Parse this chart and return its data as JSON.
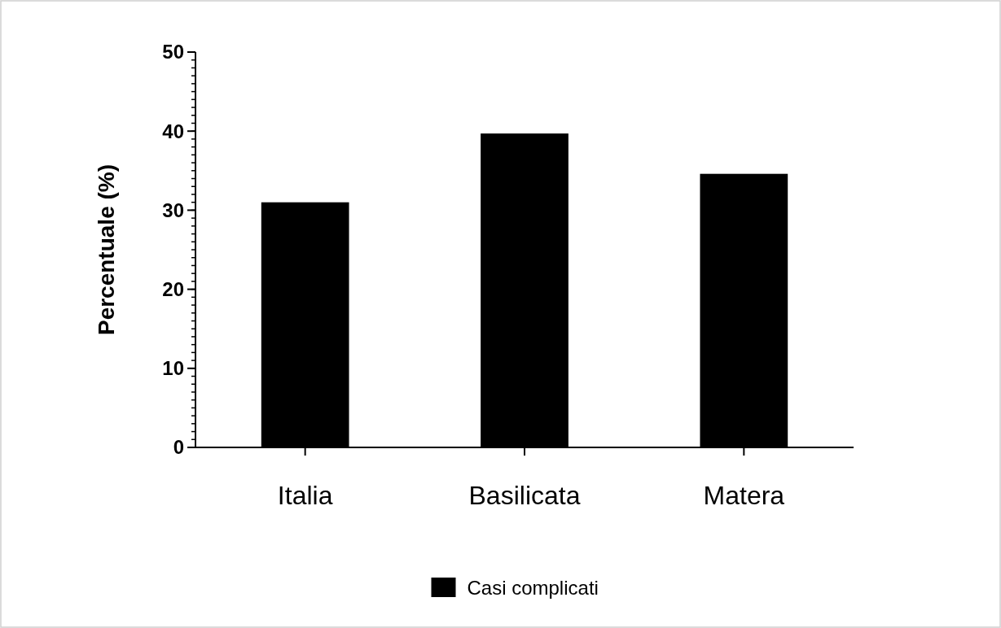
{
  "chart_data": {
    "type": "bar",
    "ylabel": "Percentuale (%)",
    "categories": [
      "Italia",
      "Basilicata",
      "Matera"
    ],
    "series": [
      {
        "name": "Casi complicati",
        "color": "#000000",
        "values": [
          31,
          39.7,
          34.6
        ]
      }
    ],
    "ylim": [
      0,
      50
    ],
    "yticks": [
      0,
      10,
      20,
      30,
      40,
      50
    ],
    "legend": "bottom",
    "grid": false
  }
}
